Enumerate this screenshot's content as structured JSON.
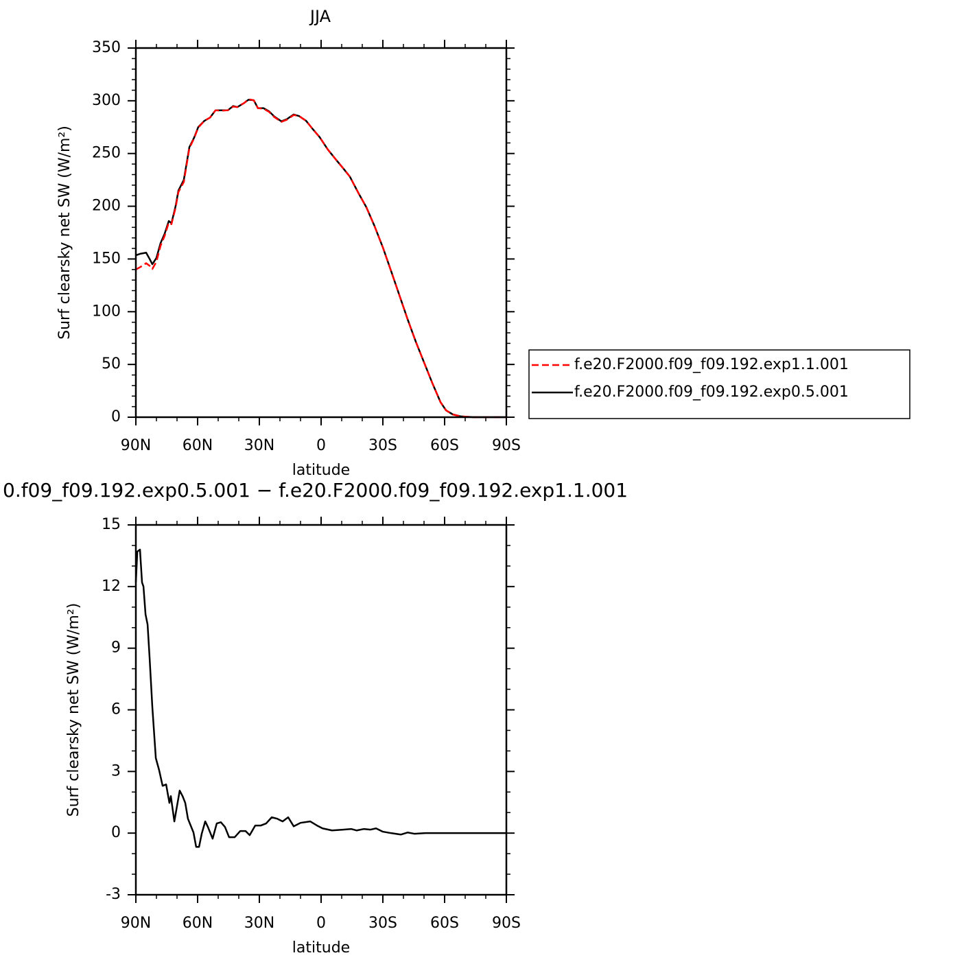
{
  "chart_data": [
    {
      "type": "line",
      "title": "JJA",
      "x_label": "latitude",
      "y_label": "Surf clearsky net SW (W/m²)",
      "x": [
        90,
        87.7,
        85,
        83.3,
        82,
        80,
        78,
        76,
        74,
        72.7,
        70.7,
        69.3,
        66.7,
        64,
        61.7,
        59.7,
        56.7,
        54,
        51.3,
        48.7,
        45.3,
        42.7,
        40.7,
        37.3,
        35.3,
        32.7,
        30.7,
        28,
        25.3,
        22.7,
        19.3,
        16.7,
        13.3,
        10.7,
        7.3,
        4,
        0.7,
        -3.3,
        -7.3,
        -10.7,
        -14,
        -18,
        -22,
        -26,
        -30,
        -34,
        -38,
        -42,
        -46,
        -50,
        -54,
        -58,
        -60.7,
        -64,
        -68,
        -74,
        -90
      ],
      "series": [
        {
          "name": "f.e20.F2000.f09_f09.192.exp1.1.001",
          "color": "#ff0000",
          "style": "dashed",
          "values": [
            140,
            142.5,
            146,
            143.5,
            140.5,
            147.5,
            162.5,
            172,
            184.5,
            183,
            198.5,
            213.5,
            223,
            255,
            264.5,
            274.5,
            281,
            284,
            291,
            290.5,
            291,
            294.5,
            294,
            298,
            301.5,
            300.5,
            293,
            292.5,
            289.5,
            284.5,
            280,
            282,
            286.5,
            285.5,
            281,
            273,
            265.5,
            253.7,
            244,
            236,
            228,
            213,
            199,
            181,
            161,
            138.6,
            115.8,
            93,
            71.6,
            52,
            32.5,
            14.3,
            6.5,
            2.6,
            0.7,
            0,
            0
          ]
        },
        {
          "name": "f.e20.F2000.f09_f09.192.exp0.5.001",
          "color": "#000000",
          "style": "solid",
          "values": [
            153.5,
            155,
            156,
            150,
            145,
            151,
            165,
            174,
            186,
            184,
            200,
            215,
            225,
            256,
            265,
            275,
            281,
            284,
            291,
            291,
            291,
            295,
            294,
            298,
            301,
            300.5,
            293,
            293,
            290,
            285,
            280.5,
            282.5,
            287,
            285.5,
            281,
            273,
            265.5,
            253.7,
            244,
            236,
            228,
            213,
            199,
            181,
            161,
            138.6,
            115.8,
            93,
            71.6,
            52,
            32.5,
            14.3,
            6.5,
            2.6,
            0.7,
            0,
            0
          ]
        }
      ],
      "xlim": [
        90,
        -90
      ],
      "xticks": [
        {
          "value": 90,
          "label": "90N"
        },
        {
          "value": 60,
          "label": "60N"
        },
        {
          "value": 30,
          "label": "30N"
        },
        0,
        {
          "value": -30,
          "label": "30S"
        },
        {
          "value": -60,
          "label": "60S"
        },
        {
          "value": -90,
          "label": "90S"
        }
      ],
      "xminorticks": [
        80,
        70,
        50,
        40,
        20,
        10,
        -10,
        -20,
        -40,
        -50,
        -70,
        -80
      ],
      "ylim": [
        0,
        350
      ],
      "yticks": [
        0,
        50,
        100,
        150,
        200,
        250,
        300,
        350
      ],
      "yminorticks": [
        10,
        20,
        30,
        40,
        60,
        70,
        80,
        90,
        110,
        120,
        130,
        140,
        160,
        170,
        180,
        190,
        210,
        220,
        230,
        240,
        260,
        270,
        280,
        290,
        310,
        320,
        330,
        340
      ]
    },
    {
      "type": "line",
      "title": "0.f09_f09.192.exp0.5.001 − f.e20.F2000.f09_f09.192.exp1.1.001",
      "x_label": "latitude",
      "y_label": "Surf clearsky net SW (W/m²)",
      "x": [
        90,
        89.3,
        88,
        87,
        86.3,
        85.3,
        84.3,
        83.3,
        82,
        80.3,
        78.7,
        77,
        75.3,
        73.7,
        73,
        71.3,
        68.7,
        67.3,
        66,
        64.7,
        62,
        60.7,
        59.3,
        58,
        56.3,
        55,
        52.7,
        50.7,
        48.7,
        46.7,
        44.7,
        42,
        39.3,
        36.7,
        34.7,
        32,
        29.3,
        26.7,
        24,
        21.3,
        18.7,
        16,
        13.3,
        10,
        5.3,
        2,
        -0.7,
        -5.3,
        -10.7,
        -14.7,
        -17.3,
        -20.7,
        -24,
        -26.7,
        -30,
        -34,
        -38.7,
        -42,
        -45.3,
        -50.7,
        -60.7,
        -74,
        -90
      ],
      "values": [
        12.2,
        13.7,
        13.8,
        12.2,
        12.0,
        10.65,
        10.15,
        8.5,
        6.15,
        3.65,
        3.07,
        2.3,
        2.37,
        1.47,
        1.8,
        0.57,
        2.07,
        1.8,
        1.47,
        0.7,
        0.03,
        -0.67,
        -0.67,
        -0.03,
        0.57,
        0.3,
        -0.27,
        0.47,
        0.53,
        0.3,
        -0.2,
        -0.2,
        0.1,
        0.1,
        -0.1,
        0.37,
        0.37,
        0.47,
        0.77,
        0.7,
        0.57,
        0.77,
        0.33,
        0.5,
        0.57,
        0.37,
        0.23,
        0.13,
        0.17,
        0.2,
        0.13,
        0.2,
        0.17,
        0.23,
        0.07,
        0,
        -0.07,
        0.03,
        -0.03,
        0,
        0,
        0,
        0
      ],
      "color": "#000000",
      "xlim": [
        90,
        -90
      ],
      "xticks": [
        {
          "value": 90,
          "label": "90N"
        },
        {
          "value": 60,
          "label": "60N"
        },
        {
          "value": 30,
          "label": "30N"
        },
        0,
        {
          "value": -30,
          "label": "30S"
        },
        {
          "value": -60,
          "label": "60S"
        },
        {
          "value": -90,
          "label": "90S"
        }
      ],
      "xminorticks": [
        80,
        70,
        50,
        40,
        20,
        10,
        -10,
        -20,
        -40,
        -50,
        -70,
        -80
      ],
      "ylim": [
        -3,
        15
      ],
      "yticks": [
        -3,
        0,
        3,
        6,
        9,
        12,
        15
      ],
      "yminorticks": [
        -2,
        -1,
        1,
        2,
        4,
        5,
        7,
        8,
        10,
        11,
        13,
        14
      ]
    }
  ]
}
